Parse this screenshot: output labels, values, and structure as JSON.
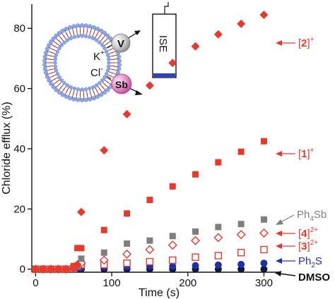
{
  "chart_data": {
    "type": "scatter",
    "xlabel": "Time (s)",
    "ylabel": "Chloride efflux (%)",
    "xlim": [
      -5,
      320
    ],
    "ylim": [
      -1,
      88
    ],
    "xticks": [
      0,
      100,
      200,
      300
    ],
    "yticks": [
      0,
      20,
      40,
      60,
      80
    ],
    "xtick_labels": [
      "0",
      "100",
      "200",
      "300"
    ],
    "ytick_labels": [
      "0",
      "20",
      "40",
      "60",
      "80"
    ],
    "series": [
      {
        "name_parts": [
          "[",
          "2",
          "]",
          "+"
        ],
        "color": "#e8392c",
        "marker": "diamond-filled",
        "points": [
          [
            0,
            0
          ],
          [
            10,
            0
          ],
          [
            20,
            0
          ],
          [
            30,
            0
          ],
          [
            40,
            0
          ],
          [
            50,
            0.3
          ],
          [
            55,
            1.5
          ],
          [
            60,
            19
          ],
          [
            90,
            39.5
          ],
          [
            120,
            51.5
          ],
          [
            150,
            61
          ],
          [
            180,
            68.5
          ],
          [
            210,
            74
          ],
          [
            240,
            78
          ],
          [
            270,
            81.5
          ],
          [
            300,
            84.5
          ]
        ]
      },
      {
        "name_parts": [
          "[",
          "1",
          "]",
          "+"
        ],
        "color": "#e8392c",
        "marker": "square-filled",
        "points": [
          [
            0,
            0
          ],
          [
            10,
            0
          ],
          [
            20,
            0
          ],
          [
            30,
            0
          ],
          [
            40,
            0
          ],
          [
            50,
            1
          ],
          [
            55,
            7
          ],
          [
            60,
            7
          ],
          [
            90,
            13
          ],
          [
            120,
            18.5
          ],
          [
            150,
            23
          ],
          [
            180,
            27.5
          ],
          [
            210,
            31.5
          ],
          [
            240,
            35.5
          ],
          [
            270,
            39
          ],
          [
            300,
            42.5
          ]
        ]
      },
      {
        "name_parts": [
          "Ph",
          "4",
          "Sb"
        ],
        "color": "#7f7f7f",
        "marker": "square-filled",
        "points": [
          [
            0,
            0
          ],
          [
            10,
            0
          ],
          [
            20,
            0
          ],
          [
            30,
            0
          ],
          [
            40,
            0
          ],
          [
            50,
            0.3
          ],
          [
            55,
            1
          ],
          [
            60,
            3.5
          ],
          [
            90,
            5.5
          ],
          [
            120,
            8.5
          ],
          [
            150,
            9.5
          ],
          [
            180,
            11
          ],
          [
            210,
            12.5
          ],
          [
            240,
            14
          ],
          [
            270,
            15
          ],
          [
            300,
            16.5
          ]
        ]
      },
      {
        "name_parts": [
          "[",
          "4",
          "]",
          "2+"
        ],
        "color": "#e8392c",
        "marker": "diamond-open",
        "points": [
          [
            0,
            0
          ],
          [
            10,
            0
          ],
          [
            20,
            0
          ],
          [
            30,
            0
          ],
          [
            40,
            0
          ],
          [
            50,
            0.3
          ],
          [
            55,
            1.5
          ],
          [
            60,
            2
          ],
          [
            90,
            3
          ],
          [
            120,
            5
          ],
          [
            150,
            6.5
          ],
          [
            180,
            8
          ],
          [
            210,
            9.5
          ],
          [
            240,
            10.5
          ],
          [
            270,
            11.5
          ],
          [
            300,
            12
          ]
        ]
      },
      {
        "name_parts": [
          "[",
          "3",
          "]",
          "2+"
        ],
        "color": "#e8392c",
        "marker": "square-open",
        "points": [
          [
            0,
            0
          ],
          [
            10,
            0
          ],
          [
            20,
            0
          ],
          [
            30,
            0
          ],
          [
            40,
            0
          ],
          [
            50,
            0.2
          ],
          [
            55,
            1
          ],
          [
            60,
            1.5
          ],
          [
            90,
            1.5
          ],
          [
            120,
            2
          ],
          [
            150,
            2.5
          ],
          [
            180,
            3
          ],
          [
            210,
            4
          ],
          [
            240,
            4.5
          ],
          [
            270,
            5.5
          ],
          [
            300,
            6.5
          ]
        ]
      },
      {
        "name_parts": [
          "Ph",
          "2",
          "S"
        ],
        "color": "#2230a8",
        "marker": "circle-filled",
        "points": [
          [
            0,
            0
          ],
          [
            10,
            0
          ],
          [
            20,
            0
          ],
          [
            30,
            0
          ],
          [
            40,
            0
          ],
          [
            50,
            0
          ],
          [
            55,
            0.2
          ],
          [
            60,
            0.5
          ],
          [
            90,
            0.7
          ],
          [
            120,
            0.8
          ],
          [
            150,
            1
          ],
          [
            180,
            1
          ],
          [
            210,
            1.2
          ],
          [
            240,
            1.4
          ],
          [
            270,
            1.6
          ],
          [
            300,
            2
          ]
        ]
      },
      {
        "name_parts": [
          "DMSO"
        ],
        "color": "#0d1a3a",
        "marker": "circle-filled",
        "points": [
          [
            0,
            0
          ],
          [
            10,
            0
          ],
          [
            20,
            0
          ],
          [
            30,
            0
          ],
          [
            40,
            0
          ],
          [
            50,
            0
          ],
          [
            60,
            0
          ],
          [
            90,
            0
          ],
          [
            120,
            0
          ],
          [
            150,
            0
          ],
          [
            180,
            0
          ],
          [
            210,
            0
          ],
          [
            240,
            0
          ],
          [
            270,
            0
          ],
          [
            300,
            0
          ]
        ]
      }
    ]
  },
  "inset": {
    "ion_k": "K",
    "ion_k_charge": "+",
    "ion_cl": "Cl",
    "ion_cl_charge": "-",
    "carrier_v": "V",
    "carrier_sb": "Sb",
    "electrode_label": "ISE"
  }
}
